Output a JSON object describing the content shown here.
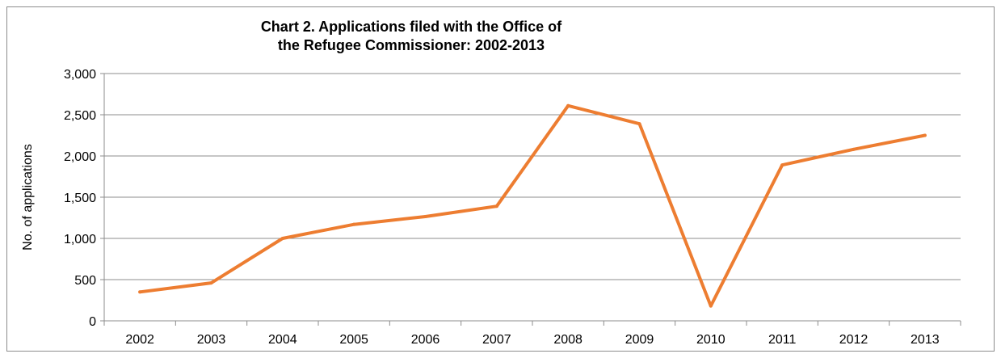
{
  "chart_data": {
    "type": "line",
    "title_lines": [
      "Chart 2. Applications filed with the Office of",
      "the Refugee Commissioner: 2002-2013"
    ],
    "xlabel": "",
    "ylabel": "No. of applications",
    "categories": [
      "2002",
      "2003",
      "2004",
      "2005",
      "2006",
      "2007",
      "2008",
      "2009",
      "2010",
      "2011",
      "2012",
      "2013"
    ],
    "series": [
      {
        "values": [
          350,
          460,
          1000,
          1170,
          1265,
          1390,
          2610,
          2390,
          180,
          1890,
          2080,
          2250
        ],
        "color": "#ed7d31"
      }
    ],
    "ylim": [
      0,
      3000
    ],
    "yticks": [
      0,
      500,
      1000,
      1500,
      2000,
      2500,
      3000
    ],
    "ytick_labels": [
      "0",
      "500",
      "1,000",
      "1,500",
      "2,000",
      "2,500",
      "3,000"
    ],
    "grid": true,
    "legend": "none",
    "colors": {
      "gridline": "#8c8c8c",
      "axis": "#8c8c8c",
      "border": "#8c8c8c"
    }
  }
}
